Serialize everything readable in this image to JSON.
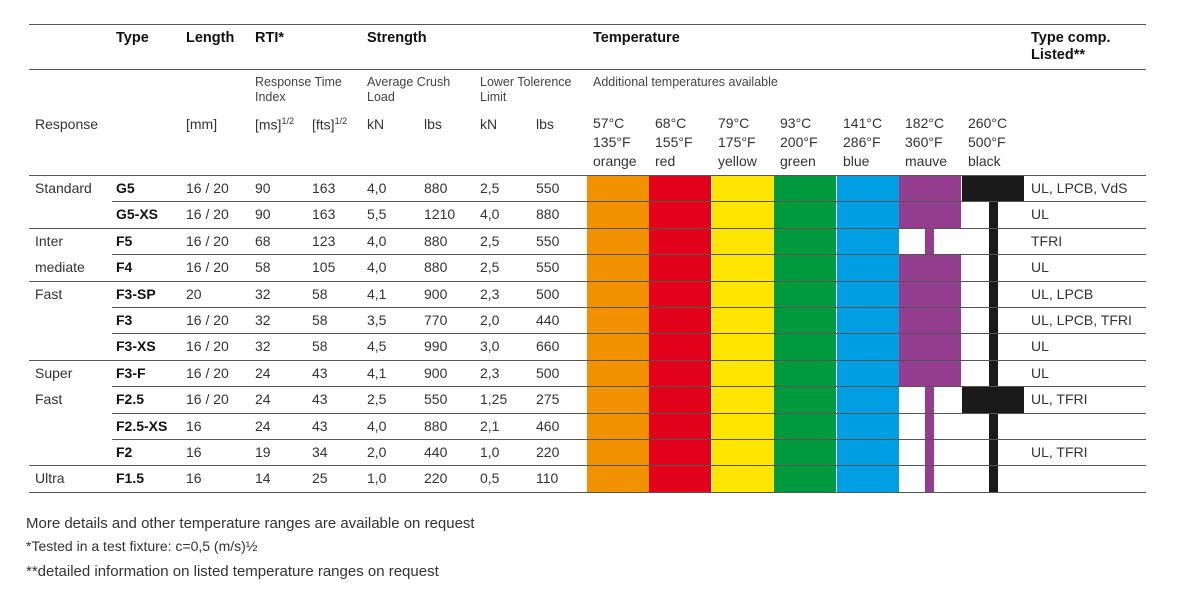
{
  "headers": {
    "type": "Type",
    "length": "Length",
    "rti": "RTI*",
    "strength": "Strength",
    "temperature": "Temperature",
    "type_comp": "Type comp.",
    "listed": "Listed**"
  },
  "subheaders": {
    "rti": "Response Time Index",
    "crush": "Average Crush Load",
    "lower": "Lower Tolerence Limit",
    "additional": "Additional temperatures available"
  },
  "units": {
    "response": "Response",
    "mm": "[mm]",
    "ms": "[ms]",
    "fts": "[fts]",
    "exp": "1/2",
    "kn1": "kN",
    "lbs1": "lbs",
    "kn2": "kN",
    "lbs2": "lbs"
  },
  "temps": [
    {
      "c": "57°C",
      "f": "135°F",
      "name": "orange",
      "color": "#F39200"
    },
    {
      "c": "68°C",
      "f": "155°F",
      "name": "red",
      "color": "#E3001B"
    },
    {
      "c": "79°C",
      "f": "175°F",
      "name": "yellow",
      "color": "#FFE500"
    },
    {
      "c": "93°C",
      "f": "200°F",
      "name": "green",
      "color": "#009A3E"
    },
    {
      "c": "141°C",
      "f": "286°F",
      "name": "blue",
      "color": "#009FE3"
    },
    {
      "c": "182°C",
      "f": "360°F",
      "name": "mauve",
      "color": "#943D8F"
    },
    {
      "c": "260°C",
      "f": "500°F",
      "name": "black",
      "color": "#1A1A1A"
    }
  ],
  "groups": [
    "Standard",
    "Inter",
    "mediate",
    "Fast",
    "Super",
    "Fast",
    "Ultra"
  ],
  "rows": [
    {
      "type": "G5",
      "length": "16 / 20",
      "ms": "90",
      "fts": "163",
      "kn": "4,0",
      "lbs": "880",
      "lkn": "2,5",
      "llbs": "550",
      "listed": "UL, LPCB, VdS"
    },
    {
      "type": "G5-XS",
      "length": "16 / 20",
      "ms": "90",
      "fts": "163",
      "kn": "5,5",
      "lbs": "1210",
      "lkn": "4,0",
      "llbs": "880",
      "listed": "UL"
    },
    {
      "type": "F5",
      "length": "16 / 20",
      "ms": "68",
      "fts": "123",
      "kn": "4,0",
      "lbs": "880",
      "lkn": "2,5",
      "llbs": "550",
      "listed": "TFRI"
    },
    {
      "type": "F4",
      "length": "16 / 20",
      "ms": "58",
      "fts": "105",
      "kn": "4,0",
      "lbs": "880",
      "lkn": "2,5",
      "llbs": "550",
      "listed": "UL"
    },
    {
      "type": "F3-SP",
      "length": "20",
      "ms": "32",
      "fts": "58",
      "kn": "4,1",
      "lbs": "900",
      "lkn": "2,3",
      "llbs": "500",
      "listed": "UL, LPCB"
    },
    {
      "type": "F3",
      "length": "16 / 20",
      "ms": "32",
      "fts": "58",
      "kn": "3,5",
      "lbs": "770",
      "lkn": "2,0",
      "llbs": "440",
      "listed": "UL, LPCB, TFRI"
    },
    {
      "type": "F3-XS",
      "length": "16 / 20",
      "ms": "32",
      "fts": "58",
      "kn": "4,5",
      "lbs": "990",
      "lkn": "3,0",
      "llbs": "660",
      "listed": "UL"
    },
    {
      "type": "F3-F",
      "length": "16 / 20",
      "ms": "24",
      "fts": "43",
      "kn": "4,1",
      "lbs": "900",
      "lkn": "2,3",
      "llbs": "500",
      "listed": "UL"
    },
    {
      "type": "F2.5",
      "length": "16 / 20",
      "ms": "24",
      "fts": "43",
      "kn": "2,5",
      "lbs": "550",
      "lkn": "1,25",
      "llbs": "275",
      "listed": "UL, TFRI"
    },
    {
      "type": "F2.5-XS",
      "length": "16",
      "ms": "24",
      "fts": "43",
      "kn": "4,0",
      "lbs": "880",
      "lkn": "2,1",
      "llbs": "460",
      "listed": ""
    },
    {
      "type": "F2",
      "length": "16",
      "ms": "19",
      "fts": "34",
      "kn": "2,0",
      "lbs": "440",
      "lkn": "1,0",
      "llbs": "220",
      "listed": "UL, TFRI"
    },
    {
      "type": "F1.5",
      "length": "16",
      "ms": "14",
      "fts": "25",
      "kn": "1,0",
      "lbs": "220",
      "lkn": "0,5",
      "llbs": "110",
      "listed": ""
    }
  ],
  "notes": {
    "line1": "More details and other temperature ranges are available on request",
    "line2": "*Tested in a test fixture: c=0,5 (m/s)½",
    "line3": "**detailed information on listed temperature ranges on request"
  }
}
